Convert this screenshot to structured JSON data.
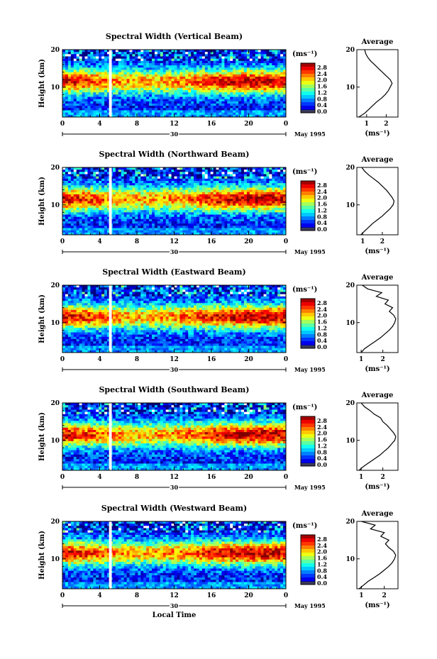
{
  "figure": {
    "shared_xlabel": "Local Time",
    "date_label": "May 1995",
    "date_day": "30",
    "colorbar_unit": "(ms⁻¹)",
    "colorbar_ticks": [
      "2.8",
      "2.4",
      "2.0",
      "1.6",
      "1.2",
      "0.8",
      "0.4",
      "0.0"
    ],
    "avg_title": "Average",
    "avg_unit": "(ms⁻¹)"
  },
  "chart_data": [
    {
      "type": "heatmap",
      "title": "Spectral Width (Vertical Beam)",
      "xlabel": "",
      "ylabel": "Height (km)",
      "x_ticks": [
        "0",
        "4",
        "8",
        "12",
        "16",
        "20",
        "0"
      ],
      "y_ticks": [
        "20",
        "10"
      ],
      "xlim": [
        0,
        24
      ],
      "ylim": [
        2,
        20
      ],
      "colorbar": {
        "unit": "ms^-1",
        "min": 0.0,
        "max": 2.8
      },
      "data_gap_hours": [
        5.0,
        5.3
      ],
      "profile": {
        "title": "Average",
        "xlabel": "(ms⁻¹)",
        "x_ticks": [
          "1",
          "2"
        ],
        "xlim": [
          0.5,
          2.6
        ],
        "heights": [
          2,
          3,
          4,
          5,
          6,
          7,
          8,
          9,
          10,
          11,
          12,
          13,
          14,
          15,
          16,
          17,
          18,
          19,
          20
        ],
        "values": [
          0.6,
          0.9,
          1.1,
          1.3,
          1.5,
          1.75,
          1.95,
          2.1,
          2.2,
          2.3,
          2.2,
          2.0,
          1.8,
          1.6,
          1.4,
          1.2,
          1.05,
          0.95,
          0.9
        ]
      }
    },
    {
      "type": "heatmap",
      "title": "Spectral Width (Northward Beam)",
      "xlabel": "",
      "ylabel": "Height (km)",
      "x_ticks": [
        "0",
        "4",
        "8",
        "12",
        "16",
        "20",
        "0"
      ],
      "y_ticks": [
        "20",
        "10"
      ],
      "xlim": [
        0,
        24
      ],
      "ylim": [
        2,
        20
      ],
      "colorbar": {
        "unit": "ms^-1",
        "min": 0.0,
        "max": 2.8
      },
      "data_gap_hours": [
        5.0,
        5.3
      ],
      "profile": {
        "title": "Average",
        "xlabel": "(ms⁻¹)",
        "x_ticks": [
          "1",
          "2"
        ],
        "xlim": [
          0.7,
          2.8
        ],
        "heights": [
          2,
          3,
          4,
          5,
          6,
          7,
          8,
          9,
          10,
          11,
          12,
          13,
          14,
          15,
          16,
          17,
          18,
          19,
          20
        ],
        "values": [
          0.9,
          1.1,
          1.3,
          1.5,
          1.75,
          2.0,
          2.2,
          2.4,
          2.55,
          2.6,
          2.5,
          2.35,
          2.2,
          2.0,
          1.8,
          1.55,
          1.3,
          1.1,
          0.95
        ]
      }
    },
    {
      "type": "heatmap",
      "title": "Spectral Width (Eastward Beam)",
      "xlabel": "",
      "ylabel": "Height (km)",
      "x_ticks": [
        "0",
        "4",
        "8",
        "12",
        "16",
        "20",
        "0"
      ],
      "y_ticks": [
        "20",
        "10"
      ],
      "xlim": [
        0,
        24
      ],
      "ylim": [
        2,
        20
      ],
      "colorbar": {
        "unit": "ms^-1",
        "min": 0.0,
        "max": 2.8
      },
      "data_gap_hours": [
        5.0,
        5.3
      ],
      "profile": {
        "title": "Average",
        "xlabel": "(ms⁻¹)",
        "x_ticks": [
          "1",
          "2"
        ],
        "xlim": [
          0.8,
          2.7
        ],
        "heights": [
          2,
          3,
          4,
          5,
          6,
          7,
          8,
          9,
          10,
          11,
          12,
          13,
          14,
          15,
          16,
          17,
          18,
          19,
          20
        ],
        "values": [
          1.0,
          1.15,
          1.4,
          1.65,
          1.9,
          2.1,
          2.3,
          2.45,
          2.55,
          2.6,
          2.5,
          2.3,
          2.45,
          2.1,
          2.25,
          1.7,
          1.95,
          1.3,
          1.05
        ]
      }
    },
    {
      "type": "heatmap",
      "title": "Spectral Width (Southward Beam)",
      "xlabel": "",
      "ylabel": "Height (km)",
      "x_ticks": [
        "0",
        "4",
        "8",
        "12",
        "16",
        "20",
        "0"
      ],
      "y_ticks": [
        "20",
        "10"
      ],
      "xlim": [
        0,
        24
      ],
      "ylim": [
        2,
        20
      ],
      "colorbar": {
        "unit": "ms^-1",
        "min": 0.0,
        "max": 2.8
      },
      "data_gap_hours": [
        5.0,
        5.3
      ],
      "profile": {
        "title": "Average",
        "xlabel": "(ms⁻¹)",
        "x_ticks": [
          "1",
          "2"
        ],
        "xlim": [
          0.8,
          2.7
        ],
        "heights": [
          2,
          3,
          4,
          5,
          6,
          7,
          8,
          9,
          10,
          11,
          12,
          13,
          14,
          15,
          16,
          17,
          18,
          19,
          20
        ],
        "values": [
          0.9,
          1.1,
          1.35,
          1.6,
          1.85,
          2.05,
          2.25,
          2.4,
          2.55,
          2.6,
          2.5,
          2.35,
          2.2,
          2.0,
          1.9,
          1.6,
          1.4,
          1.15,
          1.0
        ]
      }
    },
    {
      "type": "heatmap",
      "title": "Spectral Width (Westward Beam)",
      "xlabel": "Local Time",
      "ylabel": "Height (km)",
      "x_ticks": [
        "0",
        "4",
        "8",
        "12",
        "16",
        "20",
        "0"
      ],
      "y_ticks": [
        "20",
        "10"
      ],
      "xlim": [
        0,
        24
      ],
      "ylim": [
        2,
        20
      ],
      "colorbar": {
        "unit": "ms^-1",
        "min": 0.0,
        "max": 2.8
      },
      "data_gap_hours": [
        5.0,
        5.3
      ],
      "profile": {
        "title": "Average",
        "xlabel": "(ms⁻¹)",
        "x_ticks": [
          "1",
          "2"
        ],
        "xlim": [
          0.8,
          2.6
        ],
        "heights": [
          2,
          3,
          4,
          5,
          6,
          7,
          8,
          9,
          10,
          11,
          12,
          13,
          14,
          15,
          16,
          17,
          18,
          19,
          20
        ],
        "values": [
          0.9,
          1.1,
          1.3,
          1.55,
          1.8,
          2.0,
          2.2,
          2.35,
          2.45,
          2.5,
          2.4,
          2.2,
          2.05,
          2.2,
          1.85,
          2.0,
          1.4,
          1.6,
          1.0
        ]
      }
    }
  ]
}
